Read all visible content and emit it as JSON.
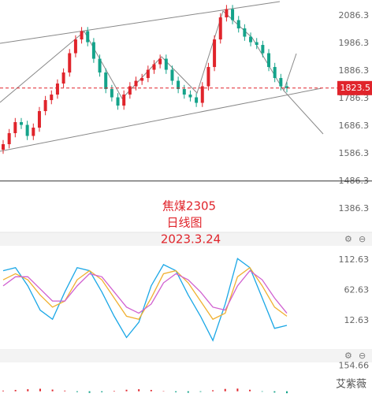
{
  "chart_data": [
    {
      "type": "candlestick",
      "annotations": [
        "焦煤2305",
        "日线图",
        "2023.3.24"
      ],
      "watermark": "艾紫薇",
      "ylim": [
        1300,
        2143
      ],
      "yticks": [
        1386.3,
        1486.3,
        1586.3,
        1686.3,
        1786.3,
        1886.3,
        1986.3,
        2086.3
      ],
      "last_price": 1823.5,
      "up_color": "#e0242b",
      "down_color": "#14a38a",
      "open": [
        1600,
        1620,
        1660,
        1700,
        1690,
        1650,
        1680,
        1740,
        1780,
        1800,
        1840,
        1880,
        1950,
        2000,
        2030,
        1990,
        1930,
        1880,
        1820,
        1790,
        1760,
        1800,
        1830,
        1850,
        1860,
        1890,
        1910,
        1930,
        1890,
        1850,
        1820,
        1800,
        1790,
        1770,
        1830,
        1900,
        2000,
        2080,
        2110,
        2070,
        2040,
        2010,
        1990,
        1980,
        1950,
        1900,
        1860,
        1830
      ],
      "high": [
        1635,
        1675,
        1715,
        1715,
        1705,
        1695,
        1755,
        1795,
        1815,
        1855,
        1895,
        1965,
        2015,
        2045,
        2045,
        2005,
        1945,
        1895,
        1835,
        1805,
        1815,
        1845,
        1865,
        1875,
        1905,
        1925,
        1945,
        1945,
        1905,
        1865,
        1835,
        1815,
        1805,
        1845,
        1915,
        2015,
        2095,
        2125,
        2125,
        2085,
        2055,
        2025,
        2005,
        1995,
        1965,
        1915,
        1875,
        1845
      ],
      "low": [
        1585,
        1605,
        1645,
        1675,
        1635,
        1635,
        1665,
        1725,
        1765,
        1785,
        1825,
        1865,
        1935,
        1985,
        1975,
        1915,
        1865,
        1805,
        1775,
        1745,
        1745,
        1785,
        1815,
        1835,
        1845,
        1875,
        1895,
        1875,
        1835,
        1805,
        1785,
        1775,
        1755,
        1755,
        1815,
        1885,
        1985,
        2065,
        2055,
        2025,
        1995,
        1975,
        1965,
        1935,
        1885,
        1845,
        1815,
        1808
      ],
      "close": [
        1620,
        1660,
        1700,
        1690,
        1650,
        1680,
        1740,
        1780,
        1800,
        1840,
        1880,
        1950,
        2000,
        2030,
        1990,
        1930,
        1880,
        1820,
        1790,
        1760,
        1800,
        1830,
        1850,
        1860,
        1890,
        1910,
        1930,
        1890,
        1850,
        1820,
        1800,
        1790,
        1770,
        1830,
        1900,
        2000,
        2080,
        2110,
        2070,
        2040,
        2010,
        1990,
        1980,
        1950,
        1900,
        1860,
        1830,
        1823.5
      ]
    },
    {
      "type": "line",
      "ylim": [
        -34,
        136
      ],
      "yticks": [
        12.63,
        62.63,
        112.63
      ],
      "series": [
        {
          "color": "#1aa7e6",
          "values": [
            95,
            100,
            70,
            30,
            15,
            60,
            100,
            95,
            60,
            20,
            -15,
            10,
            70,
            105,
            95,
            55,
            20,
            -20,
            40,
            115,
            100,
            50,
            0,
            5
          ]
        },
        {
          "color": "#f0b030",
          "values": [
            80,
            90,
            80,
            55,
            35,
            45,
            80,
            95,
            80,
            50,
            20,
            15,
            50,
            90,
            95,
            75,
            45,
            15,
            25,
            85,
            100,
            70,
            35,
            20
          ]
        },
        {
          "color": "#d060d0",
          "values": [
            70,
            85,
            85,
            65,
            45,
            45,
            70,
            90,
            85,
            60,
            35,
            25,
            40,
            75,
            90,
            80,
            60,
            35,
            30,
            70,
            95,
            80,
            50,
            25
          ]
        }
      ]
    },
    {
      "type": "bar",
      "ylim": [
        -40,
        175
      ],
      "yticks": [
        154.66
      ],
      "values": [
        4,
        8,
        12,
        15,
        10,
        4,
        -5,
        -10,
        -6,
        3,
        9,
        12,
        8,
        2,
        -6,
        -9,
        -4,
        6,
        14,
        16,
        9,
        -3,
        -8,
        -12
      ]
    }
  ]
}
